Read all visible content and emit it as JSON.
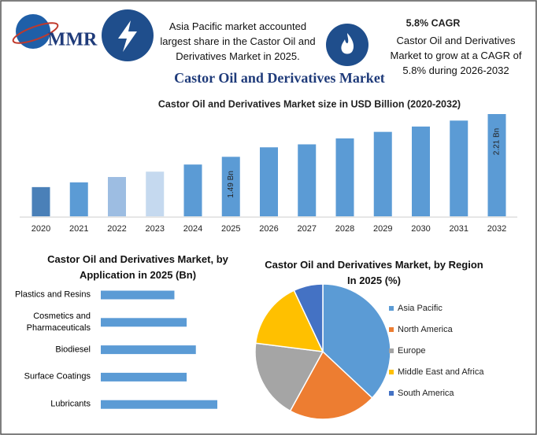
{
  "header": {
    "logo": "MMR",
    "highlight": "Asia Pacific market accounted largest share in the Castor Oil and Derivatives Market in 2025.",
    "cagr_title": "5.8% CAGR",
    "cagr_text": "Castor Oil and Derivatives Market to grow at a CAGR of 5.8% during 2026-2032",
    "title": "Castor Oil and Derivatives Market"
  },
  "chart_data": [
    {
      "type": "bar",
      "title": "Castor Oil and Derivatives Market size in USD Billion (2020-2032)",
      "categories": [
        "2020",
        "2021",
        "2022",
        "2023",
        "2024",
        "2025",
        "2026",
        "2027",
        "2028",
        "2029",
        "2030",
        "2031",
        "2032"
      ],
      "values": [
        0.98,
        1.06,
        1.15,
        1.24,
        1.36,
        1.49,
        1.65,
        1.7,
        1.8,
        1.91,
        2.0,
        2.1,
        2.21
      ],
      "value_labels": [
        null,
        null,
        null,
        null,
        null,
        "1.49 Bn",
        null,
        null,
        null,
        null,
        null,
        null,
        "2.21 Bn"
      ],
      "colors": [
        "#4a80b8",
        "#5b9bd5",
        "#9dbde2",
        "#c5d9ef",
        "#5b9bd5",
        "#5b9bd5",
        "#5b9bd5",
        "#5b9bd5",
        "#5b9bd5",
        "#5b9bd5",
        "#5b9bd5",
        "#5b9bd5",
        "#5b9bd5"
      ]
    },
    {
      "type": "hbar",
      "title": "Castor Oil and Derivatives Market, by Application in 2025 (Bn)",
      "categories": [
        "Plastics and Resins",
        "Cosmetics and Pharmaceuticals",
        "Biodiesel",
        "Surface Coatings",
        "Lubricants"
      ],
      "values": [
        0.24,
        0.28,
        0.31,
        0.28,
        0.38
      ],
      "color": "#5b9bd5"
    },
    {
      "type": "pie",
      "title": "Castor Oil and Derivatives Market, by Region In 2025 (%)",
      "categories": [
        "Asia Pacific",
        "North America",
        "Europe",
        "Middle East and Africa",
        "South America"
      ],
      "values": [
        37,
        21,
        19,
        16,
        7
      ],
      "colors": [
        "#5b9bd5",
        "#ed7d31",
        "#a5a5a5",
        "#ffc000",
        "#4472c4"
      ],
      "legend": "right"
    }
  ]
}
